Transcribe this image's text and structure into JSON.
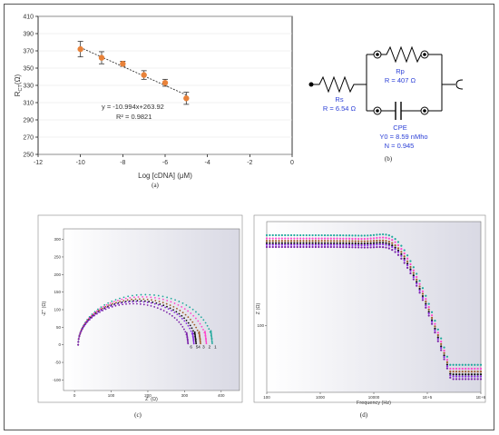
{
  "panel_labels": {
    "a": "(a)",
    "b": "(b)",
    "c": "(c)",
    "d": "(d)"
  },
  "circuit": {
    "rs_name": "Rs",
    "rs_value": "R = 6.54 Ω",
    "rp_name": "Rp",
    "rp_value": "R = 407 Ω",
    "cpe_name": "CPE",
    "cpe_y0": "Y0 = 8.59 nMho",
    "cpe_n": "N = 0.945",
    "colors": {
      "wire": "#000000",
      "text": "#2b3fd6"
    }
  },
  "chart_data": [
    {
      "id": "a",
      "type": "scatter",
      "xlabel": "Log [cDNA] (μM)",
      "ylabel": "R",
      "ylabel_sub": "CT",
      "ylabel_unit": "(Ω)",
      "xlim": [
        -12,
        0
      ],
      "ylim": [
        250,
        410
      ],
      "xticks": [
        -12,
        -10,
        -8,
        -6,
        -4,
        -2,
        0
      ],
      "yticks": [
        250,
        270,
        290,
        310,
        330,
        350,
        370,
        390,
        410
      ],
      "x": [
        -10,
        -9,
        -8,
        -7,
        -6,
        -5
      ],
      "y": [
        372,
        362,
        355,
        342,
        333,
        315
      ],
      "err": [
        9,
        7,
        3,
        5,
        4,
        7
      ],
      "equation": "y = -10.994x+263.92",
      "r2": "R² = 0.9821",
      "colors": {
        "marker": "#e8823a",
        "error": "#333333",
        "trend": "#333333"
      }
    },
    {
      "id": "c",
      "type": "scatter",
      "xlabel": "Z' (Ω)",
      "ylabel": "-Z'' (Ω)",
      "xlim": [
        -30,
        450
      ],
      "ylim": [
        -130,
        330
      ],
      "xticks": [
        0,
        100,
        200,
        300,
        400
      ],
      "yticks": [
        -100,
        -50,
        0,
        50,
        100,
        150,
        200,
        250,
        300
      ],
      "series": [
        {
          "name": "1",
          "color": "#20a89c",
          "r0": 10,
          "rct": 366,
          "tail": 40
        },
        {
          "name": "2",
          "color": "#ff44cc",
          "r0": 10,
          "rct": 350,
          "tail": 38
        },
        {
          "name": "3",
          "color": "#a05a28",
          "r0": 10,
          "rct": 334,
          "tail": 37
        },
        {
          "name": "4",
          "color": "#111111",
          "r0": 10,
          "rct": 322,
          "tail": 36
        },
        {
          "name": "5",
          "color": "#8a2be2",
          "r0": 10,
          "rct": 316,
          "tail": 35
        },
        {
          "name": "6",
          "color": "#7a1fa8",
          "r0": 10,
          "rct": 300,
          "tail": 34
        }
      ],
      "colors": {
        "bg_from": "#ffffff",
        "bg_to": "#d9d9e4"
      }
    },
    {
      "id": "d",
      "type": "line",
      "xlabel": "Frequency (Hz)",
      "ylabel": "Z (Ω)",
      "xscale": "log",
      "yscale": "log",
      "xlim": [
        100,
        1000000
      ],
      "ylim": [
        40,
        420
      ],
      "xtick_labels": [
        {
          "value": 100,
          "label": "100"
        },
        {
          "value": 1000,
          "label": "1000"
        },
        {
          "value": 10000,
          "label": "10000"
        },
        {
          "value": 100000,
          "label": "1E+5"
        },
        {
          "value": 1000000,
          "label": "1E+6"
        }
      ],
      "ytick_labels": [
        {
          "value": 100,
          "label": "100"
        }
      ],
      "series": [
        {
          "name": "1",
          "color": "#20a89c",
          "level": 348,
          "peak": 1.09
        },
        {
          "name": "2",
          "color": "#ff44cc",
          "level": 333,
          "peak": 1.09
        },
        {
          "name": "3",
          "color": "#a05a28",
          "level": 322,
          "peak": 1.08
        },
        {
          "name": "4",
          "color": "#111111",
          "level": 312,
          "peak": 1.08
        },
        {
          "name": "5",
          "color": "#8a2be2",
          "level": 305,
          "peak": 1.08
        },
        {
          "name": "6",
          "color": "#7a1fa8",
          "level": 296,
          "peak": 1.07
        }
      ],
      "end_value": 48,
      "colors": {
        "bg_from": "#ffffff",
        "bg_to": "#d9d9e4"
      }
    }
  ]
}
